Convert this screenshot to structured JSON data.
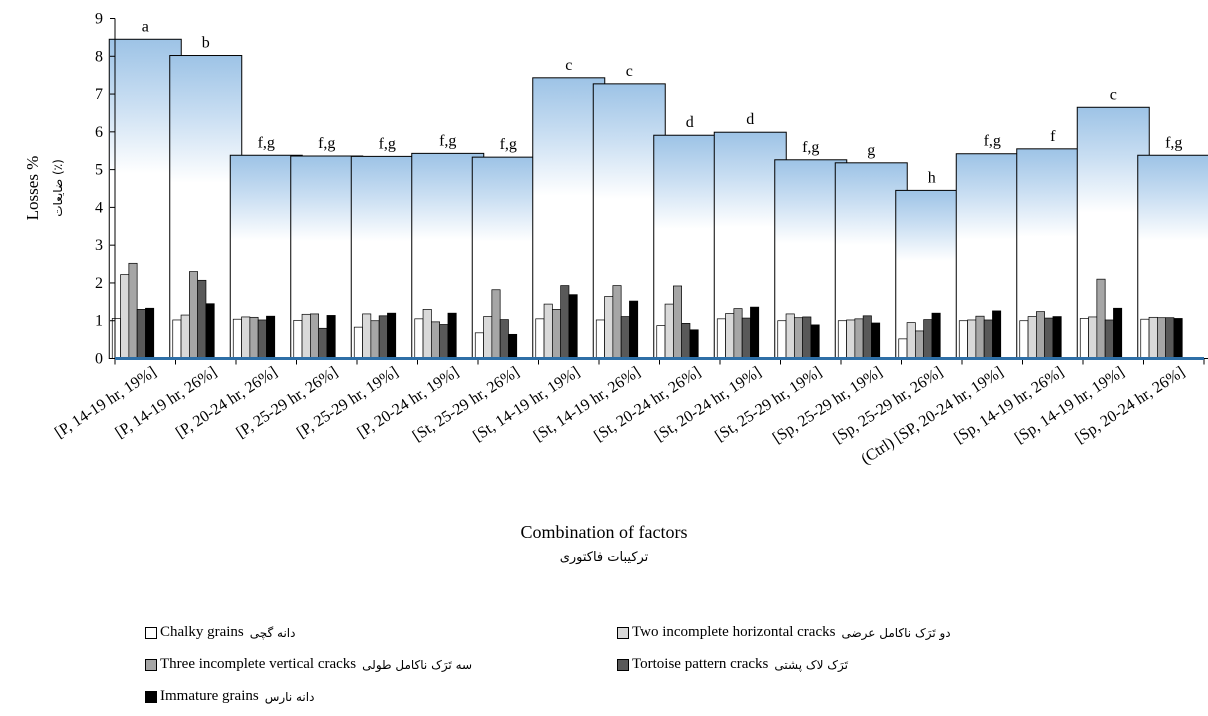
{
  "chart_data": {
    "type": "bar",
    "ylabel": "Losses %",
    "ylabel_fa": "ضایعات (٪)",
    "xlabel": "Combination of factors",
    "xlabel_fa": "ترکیبات فاکتوری",
    "ylim": [
      0,
      9
    ],
    "yticks": [
      0,
      1,
      2,
      3,
      4,
      5,
      6,
      7,
      8,
      9
    ],
    "categories": [
      "[P, 14-19 hr, 19%]",
      "[P, 14-19 hr, 26%]",
      "[P, 20-24 hr, 26%]",
      "[P, 25-29 hr, 26%]",
      "[P, 25-29 hr, 19%]",
      "[P, 20-24 hr, 19%]",
      "[St, 25-29 hr, 26%]",
      "[St, 14-19 hr, 19%]",
      "[St, 14-19 hr, 26%]",
      "[St, 20-24 hr, 26%]",
      "[St, 20-24 hr, 19%]",
      "[St, 25-29 hr, 19%]",
      "[Sp, 25-29 hr, 19%]",
      "[Sp, 25-29 hr, 26%]",
      "(Ctrl) [SP, 20-24 hr, 19%]",
      "[Sp, 14-19 hr, 26%]",
      "[Sp, 14-19 hr, 19%]",
      "[Sp, 20-24 hr, 26%]"
    ],
    "total_losses": [
      8.45,
      8.02,
      5.38,
      5.36,
      5.35,
      5.43,
      5.33,
      7.43,
      7.27,
      5.91,
      5.99,
      5.26,
      5.18,
      4.45,
      5.42,
      5.55,
      6.65,
      5.38
    ],
    "significance_letters": [
      "a",
      "b",
      "f,g",
      "f,g",
      "f,g",
      "f,g",
      "f,g",
      "c",
      "c",
      "d",
      "d",
      "f,g",
      "g",
      "h",
      "f,g",
      "f",
      "c",
      "f,g"
    ],
    "series": [
      {
        "name": "Chalky grains",
        "name_fa": "دانه گچی",
        "color": "#ffffff",
        "values": [
          1.06,
          1.02,
          1.04,
          1.01,
          0.83,
          1.05,
          0.68,
          1.05,
          1.02,
          0.87,
          1.05,
          1.0,
          1.0,
          0.52,
          1.0,
          1.0,
          1.06,
          1.04
        ]
      },
      {
        "name": "Two incomplete horizontal cracks",
        "name_fa": "دو تَرَک ناکامل عرضی",
        "color": "#d9d9d9",
        "values": [
          2.22,
          1.15,
          1.1,
          1.17,
          1.18,
          1.3,
          1.11,
          1.44,
          1.64,
          1.44,
          1.19,
          1.18,
          1.02,
          0.95,
          1.02,
          1.11,
          1.1,
          1.09
        ]
      },
      {
        "name": "Three incomplete vertical cracks",
        "name_fa": "سه تَرَک ناکامل طولی",
        "color": "#a6a6a6",
        "values": [
          2.52,
          2.3,
          1.09,
          1.18,
          1.0,
          0.97,
          1.82,
          1.3,
          1.93,
          1.92,
          1.32,
          1.08,
          1.05,
          0.73,
          1.12,
          1.24,
          2.1,
          1.08
        ]
      },
      {
        "name": "Tortoise pattern cracks",
        "name_fa": "تَرَک لاک پشتی",
        "color": "#595959",
        "values": [
          1.3,
          2.07,
          1.02,
          0.8,
          1.13,
          0.9,
          1.03,
          1.93,
          1.11,
          0.93,
          1.07,
          1.1,
          1.13,
          1.03,
          1.02,
          1.07,
          1.02,
          1.08
        ]
      },
      {
        "name": "Immature grains",
        "name_fa": "دانه نارس",
        "color": "#000000",
        "values": [
          1.33,
          1.45,
          1.12,
          1.14,
          1.2,
          1.2,
          0.64,
          1.69,
          1.52,
          0.76,
          1.36,
          0.89,
          0.94,
          1.2,
          1.26,
          1.11,
          1.33,
          1.06
        ]
      }
    ]
  }
}
